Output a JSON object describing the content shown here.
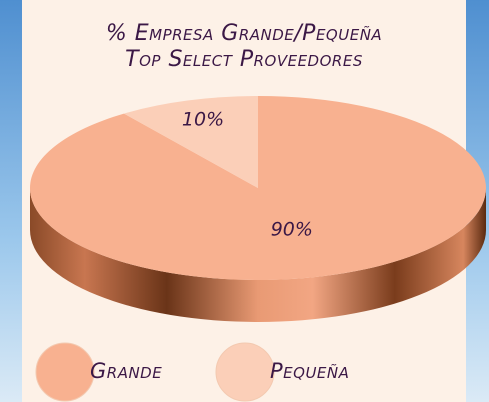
{
  "chart_data": {
    "type": "pie3d",
    "title": "% Empresa Grande/Pequeña",
    "subtitle": "Top Select Proveedores",
    "categories": [
      "Grande",
      "Pequeña"
    ],
    "values": [
      90,
      10
    ],
    "value_labels": [
      "90%",
      "10%"
    ],
    "colors": [
      "#f8b190",
      "#fbcfb8"
    ],
    "legend": "bottom"
  }
}
